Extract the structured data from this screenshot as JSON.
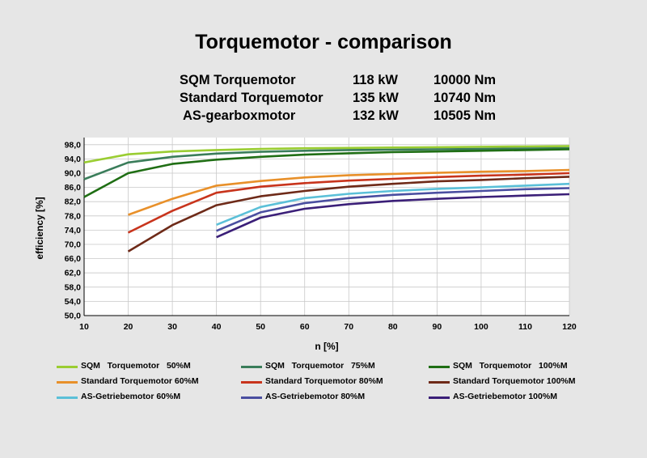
{
  "header": {
    "title": "Torquemotor - comparison",
    "specs": [
      {
        "name": "SQM  Torquemotor",
        "power": "118 kW",
        "torque": "10000 Nm"
      },
      {
        "name": "Standard Torquemotor",
        "power": "135 kW",
        "torque": "10740 Nm"
      },
      {
        "name": "AS-gearboxmotor",
        "power": "132 kW",
        "torque": "10505 Nm"
      }
    ]
  },
  "chart_data": {
    "type": "line",
    "title": "Torquemotor - comparison",
    "xlabel": "n [%]",
    "ylabel": "efficiency [%]",
    "xlim": [
      10,
      120
    ],
    "ylim": [
      50,
      100
    ],
    "grid": true,
    "legend_position": "bottom",
    "x_ticks": [
      10,
      20,
      30,
      40,
      50,
      60,
      70,
      80,
      90,
      100,
      110,
      120
    ],
    "y_ticks": [
      50.0,
      54.0,
      58.0,
      62.0,
      66.0,
      70.0,
      74.0,
      78.0,
      82.0,
      86.0,
      90.0,
      94.0,
      98.0
    ],
    "x_tick_labels": [
      "10",
      "20",
      "30",
      "40",
      "50",
      "60",
      "70",
      "80",
      "90",
      "100",
      "110",
      "120"
    ],
    "y_tick_labels": [
      "50,0",
      "54,0",
      "58,0",
      "62,0",
      "66,0",
      "70,0",
      "74,0",
      "78,0",
      "82,0",
      "86,0",
      "90,0",
      "94,0",
      "98,0"
    ],
    "series": [
      {
        "name": "SQM   Torquemotor   50%M",
        "color": "#9acd32",
        "x": [
          10,
          20,
          30,
          40,
          50,
          60,
          70,
          80,
          90,
          100,
          110,
          120
        ],
        "y": [
          93.0,
          95.3,
          96.1,
          96.5,
          96.8,
          97.0,
          97.1,
          97.2,
          97.3,
          97.4,
          97.5,
          97.6
        ]
      },
      {
        "name": "SQM   Torquemotor   75%M",
        "color": "#3a7d5a",
        "x": [
          10,
          20,
          30,
          40,
          50,
          60,
          70,
          80,
          90,
          100,
          110,
          120
        ],
        "y": [
          88.3,
          93.0,
          94.6,
          95.5,
          96.0,
          96.3,
          96.5,
          96.6,
          96.7,
          96.8,
          96.9,
          97.0
        ]
      },
      {
        "name": "SQM   Torquemotor   100%M",
        "color": "#1f6e14",
        "x": [
          10,
          20,
          30,
          40,
          50,
          60,
          70,
          80,
          90,
          100,
          110,
          120
        ],
        "y": [
          83.3,
          90.0,
          92.6,
          93.8,
          94.6,
          95.2,
          95.6,
          95.9,
          96.1,
          96.3,
          96.5,
          96.7
        ]
      },
      {
        "name": "Standard Torquemotor 60%M",
        "color": "#e8902a",
        "x": [
          20,
          30,
          40,
          50,
          60,
          70,
          80,
          90,
          100,
          110,
          120
        ],
        "y": [
          78.3,
          82.8,
          86.5,
          87.8,
          88.8,
          89.4,
          89.8,
          90.1,
          90.4,
          90.6,
          90.9
        ]
      },
      {
        "name": "Standard Torquemotor 80%M",
        "color": "#c8341c",
        "x": [
          20,
          30,
          40,
          50,
          60,
          70,
          80,
          90,
          100,
          110,
          120
        ],
        "y": [
          73.3,
          79.4,
          84.5,
          86.2,
          87.2,
          87.9,
          88.4,
          88.9,
          89.3,
          89.6,
          90.0
        ]
      },
      {
        "name": "Standard Torquemotor 100%M",
        "color": "#6e2a18",
        "x": [
          20,
          30,
          40,
          50,
          60,
          70,
          80,
          90,
          100,
          110,
          120
        ],
        "y": [
          68.0,
          75.4,
          81.0,
          83.5,
          85.0,
          86.2,
          87.0,
          87.7,
          88.1,
          88.6,
          89.0
        ]
      },
      {
        "name": "AS-Getriebemotor 60%M",
        "color": "#5bc0d8",
        "x": [
          40,
          50,
          60,
          70,
          80,
          90,
          100,
          110,
          120
        ],
        "y": [
          75.5,
          80.5,
          83.0,
          84.2,
          85.0,
          85.6,
          86.0,
          86.5,
          87.0
        ]
      },
      {
        "name": "AS-Getriebemotor 80%M",
        "color": "#4a4ea0",
        "x": [
          40,
          50,
          60,
          70,
          80,
          90,
          100,
          110,
          120
        ],
        "y": [
          73.8,
          79.0,
          81.6,
          83.0,
          83.9,
          84.5,
          85.0,
          85.5,
          85.8
        ]
      },
      {
        "name": "AS-Getriebemotor 100%M",
        "color": "#3b1f78",
        "x": [
          40,
          50,
          60,
          70,
          80,
          90,
          100,
          110,
          120
        ],
        "y": [
          72.0,
          77.5,
          80.0,
          81.3,
          82.2,
          82.8,
          83.3,
          83.7,
          84.1
        ]
      }
    ]
  }
}
